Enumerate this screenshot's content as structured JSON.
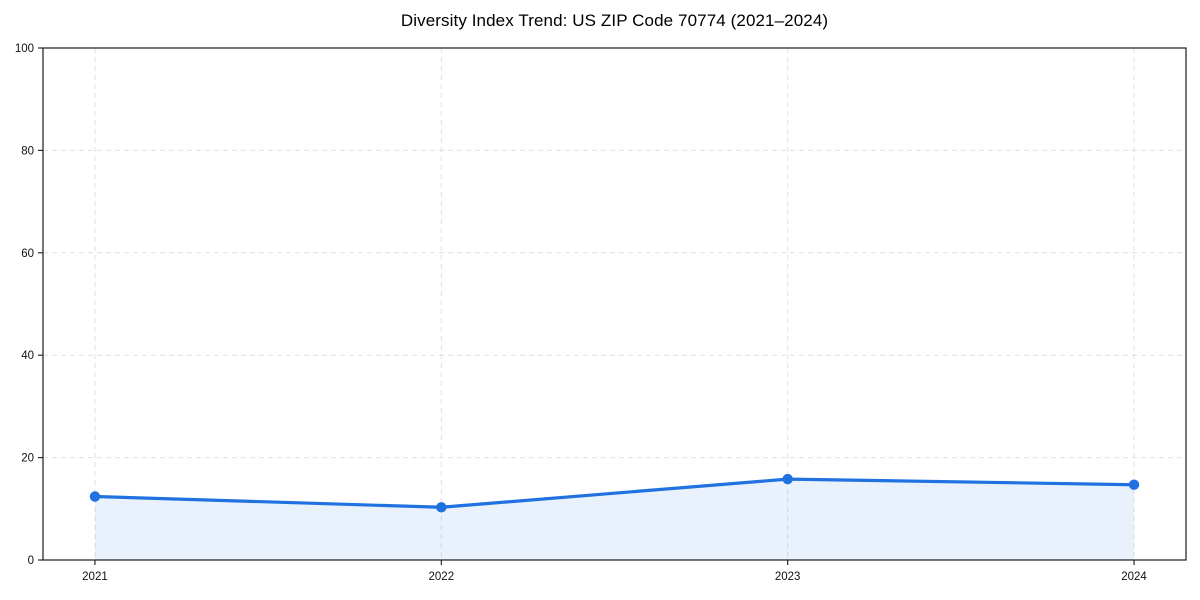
{
  "chart_data": {
    "type": "area",
    "title": "Diversity Index Trend: US ZIP Code 70774 (2021–2024)",
    "xlabel": "",
    "ylabel": "",
    "x": [
      2021,
      2022,
      2023,
      2024
    ],
    "x_tick_labels": [
      "2021",
      "2022",
      "2023",
      "2024"
    ],
    "series": [
      {
        "name": "Diversity Index",
        "values": [
          12.4,
          10.3,
          15.8,
          14.7
        ]
      }
    ],
    "xlim": [
      2020.85,
      2024.15
    ],
    "ylim": [
      0,
      100
    ],
    "yticks": [
      0,
      20,
      40,
      60,
      80,
      100
    ],
    "ytick_labels": [
      "0",
      "20",
      "40",
      "60",
      "80",
      "100"
    ],
    "grid": true,
    "grid_style": "dashed",
    "legend_position": "none",
    "line_color": "#1f72e0",
    "marker_color": "#1f72e0",
    "marker_shape": "circle",
    "fill_color": "#1f72e0",
    "fill_opacity": 0.1
  }
}
